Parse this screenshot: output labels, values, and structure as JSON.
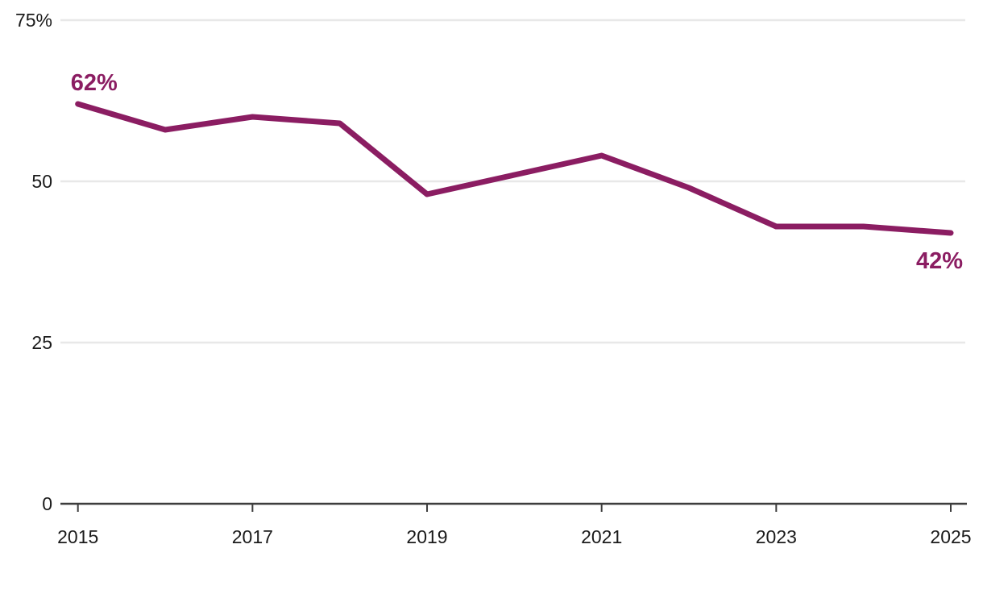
{
  "chart_data": {
    "type": "line",
    "title": "",
    "xlabel": "",
    "ylabel": "",
    "x": [
      2015,
      2016,
      2017,
      2018,
      2019,
      2020,
      2021,
      2022,
      2023,
      2024,
      2025
    ],
    "values": [
      62,
      58,
      60,
      59,
      48,
      51,
      54,
      49,
      43,
      43,
      42
    ],
    "series_name": "percent",
    "ylim": [
      0,
      75
    ],
    "xlim": [
      2015,
      2025
    ],
    "grid": "horizontal-only",
    "legend": "none",
    "y_ticks": [
      {
        "value": 75,
        "label": "75%"
      },
      {
        "value": 50,
        "label": "50"
      },
      {
        "value": 25,
        "label": "25"
      },
      {
        "value": 0,
        "label": "0"
      }
    ],
    "x_ticks": [
      {
        "value": 2015,
        "label": "2015"
      },
      {
        "value": 2017,
        "label": "2017"
      },
      {
        "value": 2019,
        "label": "2019"
      },
      {
        "value": 2021,
        "label": "2021"
      },
      {
        "value": 2023,
        "label": "2023"
      },
      {
        "value": 2025,
        "label": "2025"
      }
    ],
    "annotations": [
      {
        "x": 2015,
        "value": 62,
        "label": "62%",
        "position": "above-start"
      },
      {
        "x": 2025,
        "value": 42,
        "label": "42%",
        "position": "below-end"
      }
    ],
    "colors": {
      "line": "#8b1d62",
      "annotation_text": "#8b1d62",
      "axis": "#3d3d3d",
      "tick_text": "#1a1a1a",
      "gridline": "#e8e8e8",
      "background": "#ffffff"
    }
  }
}
